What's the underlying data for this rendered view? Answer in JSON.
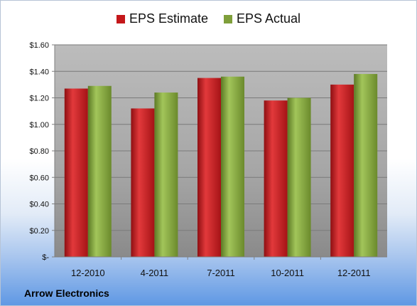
{
  "chart_data": {
    "type": "bar",
    "categories": [
      "12-2010",
      "4-2011",
      "7-2011",
      "10-2011",
      "12-2011"
    ],
    "series": [
      {
        "name": "EPS Estimate",
        "values": [
          1.27,
          1.12,
          1.35,
          1.18,
          1.3
        ],
        "color": "#c4171a"
      },
      {
        "name": "EPS Actual",
        "values": [
          1.29,
          1.24,
          1.36,
          1.2,
          1.38
        ],
        "color": "#7f9f3a"
      }
    ],
    "ylim": [
      0,
      1.6
    ],
    "yticks": [
      {
        "value": 0,
        "label": "$-"
      },
      {
        "value": 0.2,
        "label": "$0.20"
      },
      {
        "value": 0.4,
        "label": "$0.40"
      },
      {
        "value": 0.6,
        "label": "$0.60"
      },
      {
        "value": 0.8,
        "label": "$0.80"
      },
      {
        "value": 1.0,
        "label": "$1.00"
      },
      {
        "value": 1.2,
        "label": "$1.20"
      },
      {
        "value": 1.4,
        "label": "$1.40"
      },
      {
        "value": 1.6,
        "label": "$1.60"
      }
    ],
    "grid": true,
    "legend": "top",
    "title": "",
    "xlabel": "",
    "ylabel": ""
  },
  "footer": {
    "company": "Arrow Electronics"
  }
}
